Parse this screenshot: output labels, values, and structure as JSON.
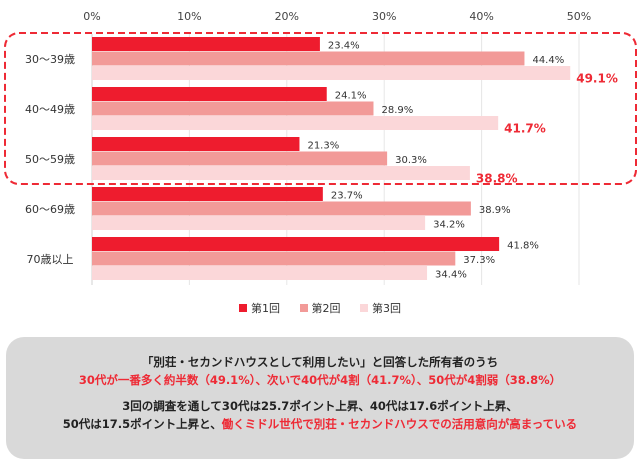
{
  "chart_data": {
    "type": "bar",
    "orientation": "horizontal",
    "categories": [
      "30〜39歳",
      "40〜49歳",
      "50〜59歳",
      "60〜69歳",
      "70歳以上"
    ],
    "series": [
      {
        "name": "第1回",
        "color": "#ee1c2e",
        "values": [
          23.4,
          24.1,
          21.3,
          23.7,
          41.8
        ],
        "labels": [
          "23.4%",
          "24.1%",
          "21.3%",
          "23.7%",
          "41.8%"
        ]
      },
      {
        "name": "第2回",
        "color": "#f29a98",
        "values": [
          44.4,
          28.9,
          30.3,
          38.9,
          37.3
        ],
        "labels": [
          "44.4%",
          "28.9%",
          "30.3%",
          "38.9%",
          "37.3%"
        ]
      },
      {
        "name": "第3回",
        "color": "#fbd7d9",
        "values": [
          49.1,
          41.7,
          38.8,
          34.2,
          34.4
        ],
        "labels": [
          "49.1%",
          "41.7%",
          "38.8%",
          "34.2%",
          "34.4%"
        ]
      }
    ],
    "highlighted_categories": [
      "30〜39歳",
      "40〜49歳",
      "50〜59歳"
    ],
    "xlim": [
      0,
      50
    ],
    "ticks": [
      "0%",
      "10%",
      "20%",
      "30%",
      "40%",
      "50%"
    ],
    "grid": true,
    "legend": "bottom",
    "highlight_color": "#ee2a35"
  },
  "note": {
    "line1": "「別荘・セカンドハウスとして利用したい」と回答した所有者のうち",
    "line2": "30代が一番多く約半数（49.1%）、次いで40代が4割（41.7%）、50代が4割弱（38.8%）",
    "line3": "3回の調査を通して30代は25.7ポイント上昇、40代は17.6ポイント上昇、",
    "line4a": "50代は17.5ポイント上昇と、",
    "line4b": "働くミドル世代で別荘・セカンドハウスでの活用意向が高まっている"
  }
}
